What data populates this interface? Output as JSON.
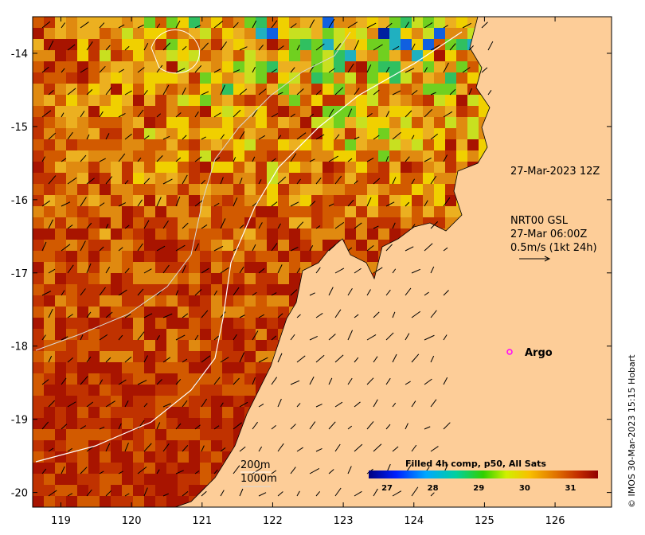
{
  "map": {
    "longitude_ticks": [
      "119",
      "120",
      "121",
      "122",
      "123",
      "124",
      "125",
      "126"
    ],
    "latitude_ticks": [
      "-14",
      "-15",
      "-16",
      "-17",
      "-18",
      "-19",
      "-20"
    ],
    "lon_range": [
      118.6,
      126.8
    ],
    "lat_range": [
      -20.2,
      -13.5
    ]
  },
  "annotations": {
    "coast_date": "27-Mar-2023 12Z",
    "current_line1": "NRT00 GSL",
    "current_line2": "27-Mar 06:00Z",
    "current_line3": "0.5m/s (1kt 24h)",
    "argo_label": "Argo",
    "contour_200": "200m",
    "contour_1000": "1000m"
  },
  "colorbar": {
    "title": "Filled 4h comp, p50, All Sats",
    "ticks": [
      "27",
      "28",
      "29",
      "30",
      "31"
    ],
    "range": [
      26.6,
      31.6
    ]
  },
  "credit": "© IMOS 30-Mar-2023 15:15 Hobart",
  "colors": {
    "land": "#fdcd98",
    "warm": "#a81400",
    "argo_marker": "#ff00ff"
  }
}
